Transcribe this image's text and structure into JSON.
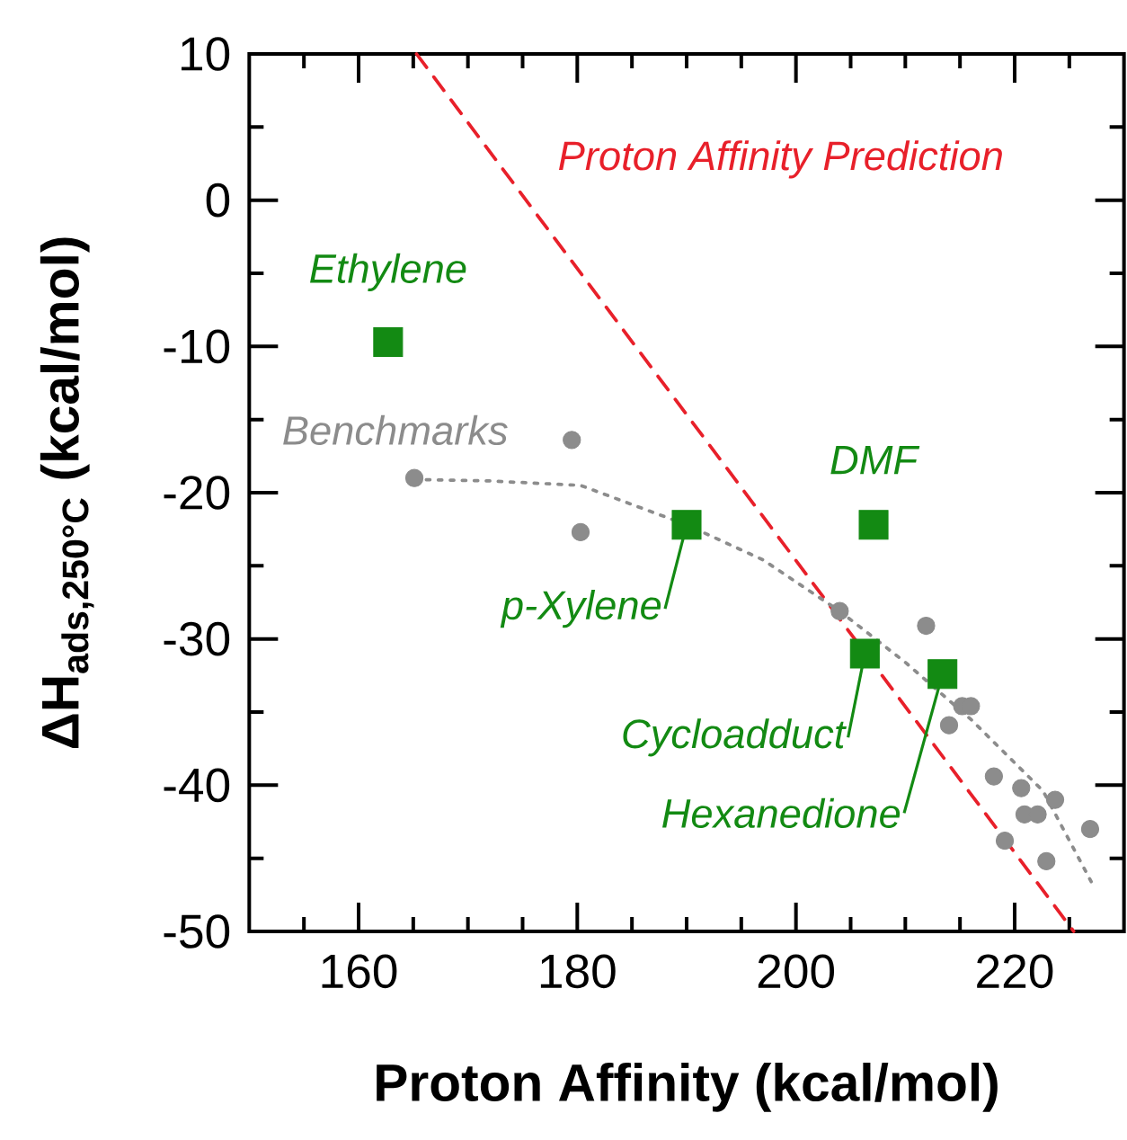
{
  "chart_data": {
    "type": "scatter",
    "xlabel": "Proton Affinity (kcal/mol)",
    "ylabel": "ΔH$_{ads,250°C}$ (kcal/mol)",
    "xlim": [
      150,
      230
    ],
    "ylim": [
      -50,
      10
    ],
    "xticks": [
      {
        "value": 155,
        "label": null
      },
      160,
      {
        "value": 165,
        "label": null
      },
      {
        "value": 170,
        "label": null
      },
      {
        "value": 175,
        "label": null
      },
      180,
      {
        "value": 185,
        "label": null
      },
      {
        "value": 190,
        "label": null
      },
      {
        "value": 195,
        "label": null
      },
      200,
      {
        "value": 205,
        "label": null
      },
      {
        "value": 210,
        "label": null
      },
      {
        "value": 215,
        "label": null
      },
      220,
      {
        "value": 225,
        "label": null
      }
    ],
    "yticks": [
      -50,
      {
        "value": -45,
        "label": null
      },
      -40,
      {
        "value": -35,
        "label": null
      },
      -30,
      {
        "value": -25,
        "label": null
      },
      -20,
      {
        "value": -15,
        "label": null
      },
      -10,
      {
        "value": -5,
        "label": null
      },
      0,
      {
        "value": 5,
        "label": null
      },
      10
    ],
    "series": [
      {
        "name": "Proton Affinity Prediction",
        "type": "line",
        "color": "#e8202a",
        "marker": "none",
        "line_style": "dashed",
        "x": [
          165.3,
          225.4
        ],
        "values": [
          10,
          -50
        ]
      },
      {
        "name": "Benchmarks",
        "color": "#8c8c8c",
        "marker": "circle",
        "x": [
          165.1,
          179.5,
          180.3,
          204.0,
          211.9,
          214.0,
          215.2,
          216.0,
          218.1,
          220.6,
          223.7,
          220.9,
          222.1,
          226.9,
          219.1,
          222.9
        ],
        "values": [
          -19.0,
          -16.4,
          -22.7,
          -28.1,
          -29.1,
          -35.9,
          -34.6,
          -34.6,
          -39.4,
          -40.2,
          -41.0,
          -42.0,
          -42.0,
          -43.0,
          -43.8,
          -45.2
        ]
      },
      {
        "type": "line",
        "color": "#8c8c8c",
        "marker": "none",
        "line_style": "dotted",
        "x": [
          165.1,
          172,
          180.3,
          190.0,
          197,
          204.0,
          210,
          216.0,
          222.6,
          227.0
        ],
        "values": [
          -19.1,
          -19.2,
          -19.5,
          -22.2,
          -24.6,
          -28.1,
          -31.6,
          -35.5,
          -40.4,
          -46.6
        ]
      },
      {
        "name": "Ethylene",
        "color": "#138a13",
        "marker": "square",
        "x": [
          162.7
        ],
        "values": [
          -9.7
        ]
      },
      {
        "name": "p-Xylene",
        "color": "#138a13",
        "marker": "square",
        "x": [
          190.0
        ],
        "values": [
          -22.2
        ]
      },
      {
        "name": "DMF",
        "color": "#138a13",
        "marker": "square",
        "x": [
          207.1
        ],
        "values": [
          -22.2
        ]
      },
      {
        "name": "Cycloadduct",
        "color": "#138a13",
        "marker": "square",
        "x": [
          206.3
        ],
        "values": [
          -31.0
        ]
      },
      {
        "name": "Hexanedione",
        "color": "#138a13",
        "marker": "square",
        "x": [
          213.4
        ],
        "values": [
          -32.4
        ]
      }
    ]
  }
}
